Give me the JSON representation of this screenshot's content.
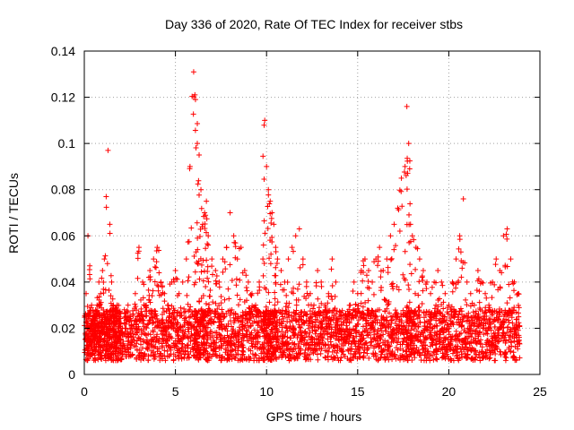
{
  "chart_data": {
    "type": "scatter",
    "title": "Day 336 of 2020, Rate Of TEC Index for receiver stbs",
    "xlabel": "GPS time / hours",
    "ylabel": "ROTI / TECUs",
    "xlim": [
      0,
      25
    ],
    "ylim": [
      0,
      0.14
    ],
    "xticks": [
      "0",
      "5",
      "10",
      "15",
      "20",
      "25"
    ],
    "yticks": [
      "0",
      "0.02",
      "0.04",
      "0.06",
      "0.08",
      "0.1",
      "0.12",
      "0.14"
    ],
    "grid": true,
    "marker": "+",
    "color": "#ff0000",
    "series": [
      {
        "description": "Dense band of ROTI samples, roughly 0.005–0.04 TECU/min across 0–24 h, with spikes",
        "x": [
          0.1,
          0.2,
          0.3,
          0.4,
          0.5,
          0.6,
          0.7,
          0.8,
          0.9,
          1.0,
          1.1,
          1.2,
          1.3,
          1.4,
          1.5,
          1.6,
          1.7,
          1.8,
          1.9,
          2.0,
          2.2,
          2.4,
          2.6,
          2.8,
          3.0,
          3.2,
          3.4,
          3.6,
          3.8,
          4.0,
          4.2,
          4.4,
          4.6,
          4.8,
          5.0,
          5.2,
          5.4,
          5.6,
          5.8,
          6.0,
          6.1,
          6.2,
          6.3,
          6.4,
          6.5,
          6.6,
          6.7,
          6.8,
          7.0,
          7.2,
          7.4,
          7.6,
          7.8,
          8.0,
          8.2,
          8.4,
          8.6,
          8.8,
          9.0,
          9.2,
          9.4,
          9.6,
          9.8,
          9.9,
          10.0,
          10.1,
          10.2,
          10.3,
          10.4,
          10.5,
          10.6,
          10.8,
          11.0,
          11.2,
          11.4,
          11.6,
          11.8,
          12.0,
          12.2,
          12.4,
          12.6,
          12.8,
          13.0,
          13.2,
          13.4,
          13.6,
          13.8,
          14.0,
          14.2,
          14.4,
          14.6,
          14.8,
          15.0,
          15.2,
          15.4,
          15.6,
          15.8,
          16.0,
          16.2,
          16.4,
          16.6,
          16.8,
          17.0,
          17.2,
          17.4,
          17.6,
          17.7,
          17.8,
          17.9,
          18.0,
          18.2,
          18.4,
          18.6,
          18.8,
          19.0,
          19.2,
          19.4,
          19.6,
          19.8,
          20.0,
          20.2,
          20.4,
          20.6,
          20.8,
          21.0,
          21.2,
          21.4,
          21.6,
          21.8,
          22.0,
          22.2,
          22.4,
          22.6,
          22.8,
          23.0,
          23.2,
          23.4,
          23.6,
          23.8
        ],
        "y": [
          0.035,
          0.06,
          0.047,
          0.03,
          0.025,
          0.02,
          0.03,
          0.04,
          0.035,
          0.045,
          0.05,
          0.077,
          0.097,
          0.065,
          0.04,
          0.03,
          0.025,
          0.03,
          0.025,
          0.02,
          0.028,
          0.03,
          0.02,
          0.035,
          0.055,
          0.04,
          0.03,
          0.045,
          0.05,
          0.055,
          0.04,
          0.035,
          0.03,
          0.04,
          0.045,
          0.035,
          0.04,
          0.05,
          0.09,
          0.131,
          0.119,
          0.1,
          0.095,
          0.08,
          0.065,
          0.07,
          0.075,
          0.06,
          0.05,
          0.045,
          0.04,
          0.05,
          0.055,
          0.07,
          0.06,
          0.05,
          0.055,
          0.045,
          0.04,
          0.035,
          0.03,
          0.04,
          0.05,
          0.11,
          0.09,
          0.08,
          0.075,
          0.07,
          0.065,
          0.055,
          0.05,
          0.045,
          0.04,
          0.05,
          0.055,
          0.06,
          0.063,
          0.05,
          0.04,
          0.035,
          0.03,
          0.045,
          0.04,
          0.03,
          0.035,
          0.05,
          0.04,
          0.02,
          0.015,
          0.025,
          0.03,
          0.04,
          0.035,
          0.045,
          0.05,
          0.045,
          0.04,
          0.05,
          0.055,
          0.045,
          0.05,
          0.06,
          0.065,
          0.072,
          0.085,
          0.09,
          0.116,
          0.1,
          0.065,
          0.06,
          0.055,
          0.05,
          0.045,
          0.04,
          0.035,
          0.04,
          0.045,
          0.04,
          0.035,
          0.03,
          0.04,
          0.05,
          0.06,
          0.076,
          0.04,
          0.035,
          0.03,
          0.045,
          0.04,
          0.035,
          0.03,
          0.04,
          0.05,
          0.045,
          0.06,
          0.063,
          0.05,
          0.04,
          0.035
        ]
      }
    ]
  }
}
